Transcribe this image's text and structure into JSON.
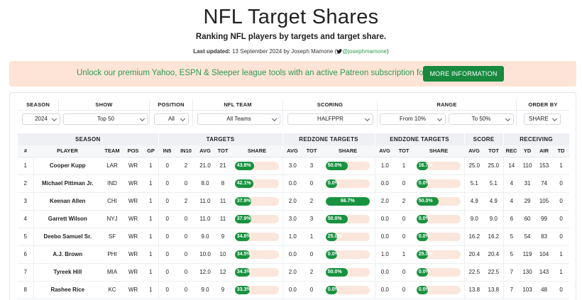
{
  "page": {
    "title": "NFL Target Shares",
    "subtitle": "Ranking NFL players by targets and target share.",
    "updated_label": "Last updated:",
    "updated_text": "13 September 2024 by Joseph Mamone (",
    "handle": "@josephmamone",
    "updated_close": ")"
  },
  "promo": {
    "text": "Unlock our premium Yahoo, ESPN & Sleeper league tools with an active Patreon subscription for $2/mo",
    "button": "MORE INFORMATION"
  },
  "colors": {
    "accent": "#178a3e",
    "promo_bg": "#fde4d6",
    "bar_track": "#fbe6db"
  },
  "filters": {
    "season": {
      "label": "SEASON",
      "value": "2024"
    },
    "show": {
      "label": "SHOW",
      "value": "Top 50"
    },
    "position": {
      "label": "POSITION",
      "value": "All"
    },
    "team": {
      "label": "NFL TEAM",
      "value": "All Teams"
    },
    "scoring": {
      "label": "SCORING",
      "value": "HALFPPR"
    },
    "range": {
      "label": "RANGE",
      "from": "From 10%",
      "to": "To 50%"
    },
    "order": {
      "label": "ORDER BY",
      "value": "SHARE"
    }
  },
  "table": {
    "groups": [
      "SEASON",
      "TARGETS",
      "REDZONE TARGETS",
      "ENDZONE TARGETS",
      "SCORE",
      "RECEIVING"
    ],
    "columns": [
      "#",
      "PLAYER",
      "TEAM",
      "POS",
      "GP",
      "IN5",
      "IN10",
      "AVG",
      "TOT",
      "SHARE",
      "AVG",
      "TOT",
      "SHARE",
      "AVG",
      "TOT",
      "SHARE",
      "AVG",
      "TOT",
      "REC",
      "YD",
      "AIR",
      "TD"
    ],
    "rows": [
      {
        "rank": "1",
        "player": "Cooper Kupp",
        "team": "LAR",
        "pos": "WR",
        "gp": "1",
        "in5": "0",
        "in10": "2",
        "t_avg": "21.0",
        "t_tot": "21",
        "t_share": "43.8%",
        "t_share_v": 43.8,
        "rz_avg": "3.0",
        "rz_tot": "3",
        "rz_share": "50.0%",
        "rz_share_v": 50.0,
        "ez_avg": "1.0",
        "ez_tot": "1",
        "ez_share": "16.7%",
        "ez_share_v": 16.7,
        "s_avg": "25.0",
        "s_tot": "25.0",
        "rec": "14",
        "yd": "110",
        "air": "153",
        "td": "1"
      },
      {
        "rank": "2",
        "player": "Michael Pittman Jr.",
        "team": "IND",
        "pos": "WR",
        "gp": "1",
        "in5": "0",
        "in10": "0",
        "t_avg": "8.0",
        "t_tot": "8",
        "t_share": "42.1%",
        "t_share_v": 42.1,
        "rz_avg": "0.0",
        "rz_tot": "0",
        "rz_share": "0.0%",
        "rz_share_v": 0,
        "ez_avg": "0.0",
        "ez_tot": "0",
        "ez_share": "0.0%",
        "ez_share_v": 0,
        "s_avg": "5.1",
        "s_tot": "5.1",
        "rec": "4",
        "yd": "31",
        "air": "74",
        "td": "0"
      },
      {
        "rank": "3",
        "player": "Keenan Allen",
        "team": "CHI",
        "pos": "WR",
        "gp": "1",
        "in5": "0",
        "in10": "2",
        "t_avg": "11.0",
        "t_tot": "11",
        "t_share": "37.9%",
        "t_share_v": 37.9,
        "rz_avg": "2.0",
        "rz_tot": "2",
        "rz_share": "66.7%",
        "rz_share_v": 66.7,
        "ez_avg": "2.0",
        "ez_tot": "2",
        "ez_share": "50.0%",
        "ez_share_v": 50.0,
        "s_avg": "4.9",
        "s_tot": "4.9",
        "rec": "4",
        "yd": "29",
        "air": "105",
        "td": "0"
      },
      {
        "rank": "4",
        "player": "Garrett Wilson",
        "team": "NYJ",
        "pos": "WR",
        "gp": "1",
        "in5": "0",
        "in10": "0",
        "t_avg": "11.0",
        "t_tot": "11",
        "t_share": "37.9%",
        "t_share_v": 37.9,
        "rz_avg": "3.0",
        "rz_tot": "3",
        "rz_share": "50.0%",
        "rz_share_v": 50.0,
        "ez_avg": "0.0",
        "ez_tot": "0",
        "ez_share": "0.0%",
        "ez_share_v": 0,
        "s_avg": "9.0",
        "s_tot": "9.0",
        "rec": "6",
        "yd": "60",
        "air": "99",
        "td": "0"
      },
      {
        "rank": "5",
        "player": "Deebo Samuel Sr.",
        "team": "SF",
        "pos": "WR",
        "gp": "1",
        "in5": "0",
        "in10": "0",
        "t_avg": "9.0",
        "t_tot": "9",
        "t_share": "34.6%",
        "t_share_v": 34.6,
        "rz_avg": "1.0",
        "rz_tot": "1",
        "rz_share": "25.0%",
        "rz_share_v": 25.0,
        "ez_avg": "0.0",
        "ez_tot": "0",
        "ez_share": "0.0%",
        "ez_share_v": 0,
        "s_avg": "16.2",
        "s_tot": "16.2",
        "rec": "5",
        "yd": "54",
        "air": "83",
        "td": "0"
      },
      {
        "rank": "6",
        "player": "A.J. Brown",
        "team": "PHI",
        "pos": "WR",
        "gp": "1",
        "in5": "0",
        "in10": "0",
        "t_avg": "10.0",
        "t_tot": "10",
        "t_share": "34.5%",
        "t_share_v": 34.5,
        "rz_avg": "0.0",
        "rz_tot": "0",
        "rz_share": "0.0%",
        "rz_share_v": 0,
        "ez_avg": "1.0",
        "ez_tot": "1",
        "ez_share": "25.0%",
        "ez_share_v": 25.0,
        "s_avg": "20.4",
        "s_tot": "20.4",
        "rec": "5",
        "yd": "119",
        "air": "104",
        "td": "1"
      },
      {
        "rank": "7",
        "player": "Tyreek Hill",
        "team": "MIA",
        "pos": "WR",
        "gp": "1",
        "in5": "0",
        "in10": "0",
        "t_avg": "12.0",
        "t_tot": "12",
        "t_share": "34.3%",
        "t_share_v": 34.3,
        "rz_avg": "2.0",
        "rz_tot": "2",
        "rz_share": "50.0%",
        "rz_share_v": 50.0,
        "ez_avg": "0.0",
        "ez_tot": "0",
        "ez_share": "0.0%",
        "ez_share_v": 0,
        "s_avg": "22.5",
        "s_tot": "22.5",
        "rec": "7",
        "yd": "130",
        "air": "143",
        "td": "1"
      },
      {
        "rank": "8",
        "player": "Rashee Rice",
        "team": "KC",
        "pos": "WR",
        "gp": "1",
        "in5": "0",
        "in10": "0",
        "t_avg": "9.0",
        "t_tot": "9",
        "t_share": "33.3%",
        "t_share_v": 33.3,
        "rz_avg": "0.0",
        "rz_tot": "0",
        "rz_share": "0.0%",
        "rz_share_v": 0,
        "ez_avg": "0.0",
        "ez_tot": "0",
        "ez_share": "0.0%",
        "ez_share_v": 0,
        "s_avg": "13.8",
        "s_tot": "13.8",
        "rec": "7",
        "yd": "103",
        "air": "48",
        "td": "0"
      }
    ]
  }
}
